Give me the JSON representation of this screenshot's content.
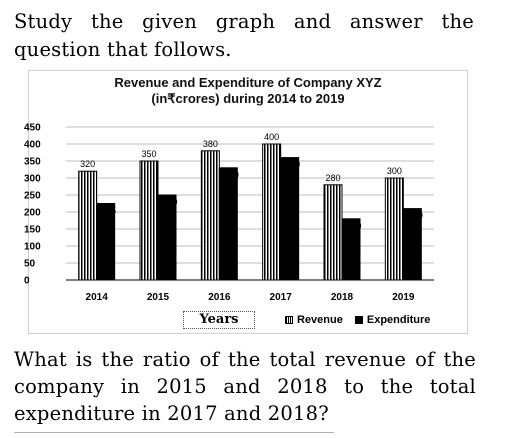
{
  "question_intro": "Study the given graph and answer the question that follows.",
  "question": "What is the ratio of the total revenue of the company in 2015 and 2018 to the total expenditure in 2017 and 2018?",
  "chart_data": {
    "type": "bar",
    "title": "Revenue and Expenditure of Company XYZ (in₹crores) during 2014 to 2019",
    "title_line1": "Revenue and Expenditure of Company XYZ",
    "title_line2": "(in₹crores) during 2014 to 2019",
    "xlabel": "Years",
    "ylabel": "",
    "categories": [
      "2014",
      "2015",
      "2016",
      "2017",
      "2018",
      "2019"
    ],
    "series": [
      {
        "name": "Revenue",
        "values": [
          320,
          350,
          380,
          400,
          280,
          300
        ],
        "pattern": "vertical-stripes",
        "color": "#000000"
      },
      {
        "name": "Expenditure",
        "values": [
          225,
          250,
          330,
          360,
          180,
          210
        ],
        "pattern": "solid",
        "color": "#000000"
      }
    ],
    "ylim": [
      0,
      450
    ],
    "yticks": [
      0,
      50,
      100,
      150,
      200,
      250,
      300,
      350,
      400,
      450
    ],
    "grid": true,
    "legend_position": "bottom-right"
  }
}
